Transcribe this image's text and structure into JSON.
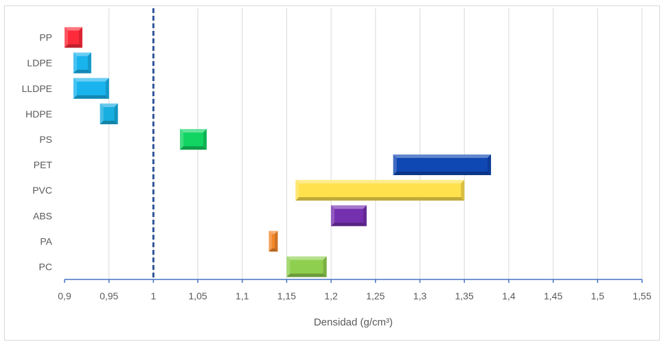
{
  "chart_data": {
    "type": "bar",
    "orientation": "horizontal-range",
    "title": "",
    "xlabel": "Densidad (g/cm³)",
    "ylabel": "",
    "xlim": [
      0.9,
      1.55
    ],
    "xticks": [
      0.9,
      0.95,
      1,
      1.05,
      1.1,
      1.15,
      1.2,
      1.25,
      1.3,
      1.35,
      1.4,
      1.45,
      1.5,
      1.55
    ],
    "xtick_labels": [
      "0,9",
      "0,95",
      "1",
      "1,05",
      "1,1",
      "1,15",
      "1,2",
      "1,25",
      "1,3",
      "1,35",
      "1,4",
      "1,45",
      "1,5",
      "1,55"
    ],
    "grid": "vertical",
    "reference_line": {
      "x": 1,
      "style": "dashed",
      "color": "#2f5597"
    },
    "categories": [
      "PP",
      "LDPE",
      "LLDPE",
      "HDPE",
      "PS",
      "PET",
      "PVC",
      "ABS",
      "PA",
      "PC"
    ],
    "ranges": [
      {
        "category": "PP",
        "min": 0.9,
        "max": 0.92,
        "color": "#ff2a3a"
      },
      {
        "category": "LDPE",
        "min": 0.91,
        "max": 0.93,
        "color": "#19b4ee"
      },
      {
        "category": "LLDPE",
        "min": 0.91,
        "max": 0.95,
        "color": "#19b4ee"
      },
      {
        "category": "HDPE",
        "min": 0.94,
        "max": 0.96,
        "color": "#19aee0"
      },
      {
        "category": "PS",
        "min": 1.03,
        "max": 1.06,
        "color": "#12d463"
      },
      {
        "category": "PET",
        "min": 1.27,
        "max": 1.38,
        "color": "#0f47b3"
      },
      {
        "category": "PVC",
        "min": 1.16,
        "max": 1.35,
        "color": "#ffe14d"
      },
      {
        "category": "ABS",
        "min": 1.2,
        "max": 1.24,
        "color": "#7530b0"
      },
      {
        "category": "PA",
        "min": 1.13,
        "max": 1.14,
        "color": "#f2862a"
      },
      {
        "category": "PC",
        "min": 1.15,
        "max": 1.195,
        "color": "#8fcf4f"
      }
    ]
  }
}
